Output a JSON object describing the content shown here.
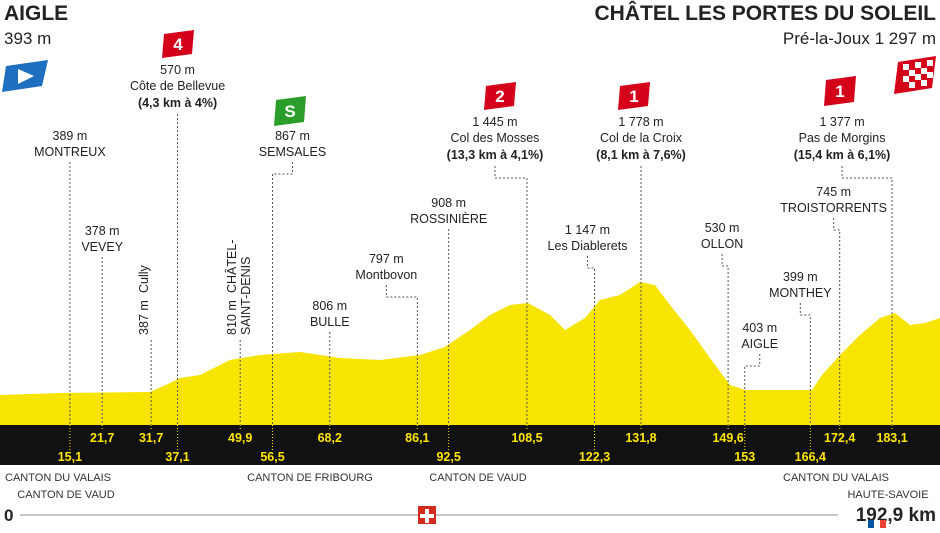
{
  "start": {
    "name": "AIGLE",
    "altitude": "393 m"
  },
  "finish": {
    "name": "CHÂTEL LES PORTES DU SOLEIL",
    "place": "Pré-la-Joux 1 297 m"
  },
  "waypoints": [
    {
      "altitude": "389 m",
      "name": "MONTREUX",
      "km": "15,1"
    },
    {
      "altitude": "378 m",
      "name": "VEVEY",
      "km": "21,7"
    },
    {
      "altitude": "387 m",
      "name": "Cully",
      "km": "31,7"
    },
    {
      "altitude": "570 m",
      "name": "Côte de Bellevue",
      "climb": "(4,3 km à 4%)",
      "category": "4",
      "km": "37,1"
    },
    {
      "altitude": "810 m",
      "name": "CHÂTEL-",
      "name2": "SAINT-DENIS",
      "km": "49,9"
    },
    {
      "altitude": "867 m",
      "name": "SEMSALES",
      "category": "S",
      "km": "56,5"
    },
    {
      "altitude": "806 m",
      "name": "BULLE",
      "km": "68,2"
    },
    {
      "altitude": "797 m",
      "name": "Montbovon",
      "km": "86,1"
    },
    {
      "altitude": "908 m",
      "name": "ROSSINIÈRE",
      "km": "92,5"
    },
    {
      "altitude": "1 445 m",
      "name": "Col des Mosses",
      "climb": "(13,3 km à 4,1%)",
      "category": "2",
      "km": "108,5"
    },
    {
      "altitude": "1 147 m",
      "name": "Les Diablerets",
      "km": "122,3"
    },
    {
      "altitude": "1 778 m",
      "name": "Col de la Croix",
      "climb": "(8,1 km à 7,6%)",
      "category": "1",
      "km": "131,8"
    },
    {
      "altitude": "530 m",
      "name": "OLLON",
      "km": "149,6"
    },
    {
      "altitude": "403 m",
      "name": "AIGLE",
      "km": "153"
    },
    {
      "altitude": "399 m",
      "name": "MONTHEY",
      "km": "166,4"
    },
    {
      "altitude": "745 m",
      "name": "TROISTORRENTS",
      "km": "172,4"
    },
    {
      "altitude": "1 377 m",
      "name": "Pas de Morgins",
      "climb": "(15,4 km à 6,1%)",
      "category": "1",
      "km": "183,1"
    }
  ],
  "regions": [
    {
      "label": "CANTON DU VALAIS",
      "label2": "CANTON DE VAUD"
    },
    {
      "label": "CANTON DE FRIBOURG"
    },
    {
      "label": "CANTON DE VAUD"
    },
    {
      "label": "CANTON DU VALAIS",
      "label2": "HAUTE-SAVOIE"
    }
  ],
  "distance_start": "0",
  "distance_total": "192,9 km"
}
